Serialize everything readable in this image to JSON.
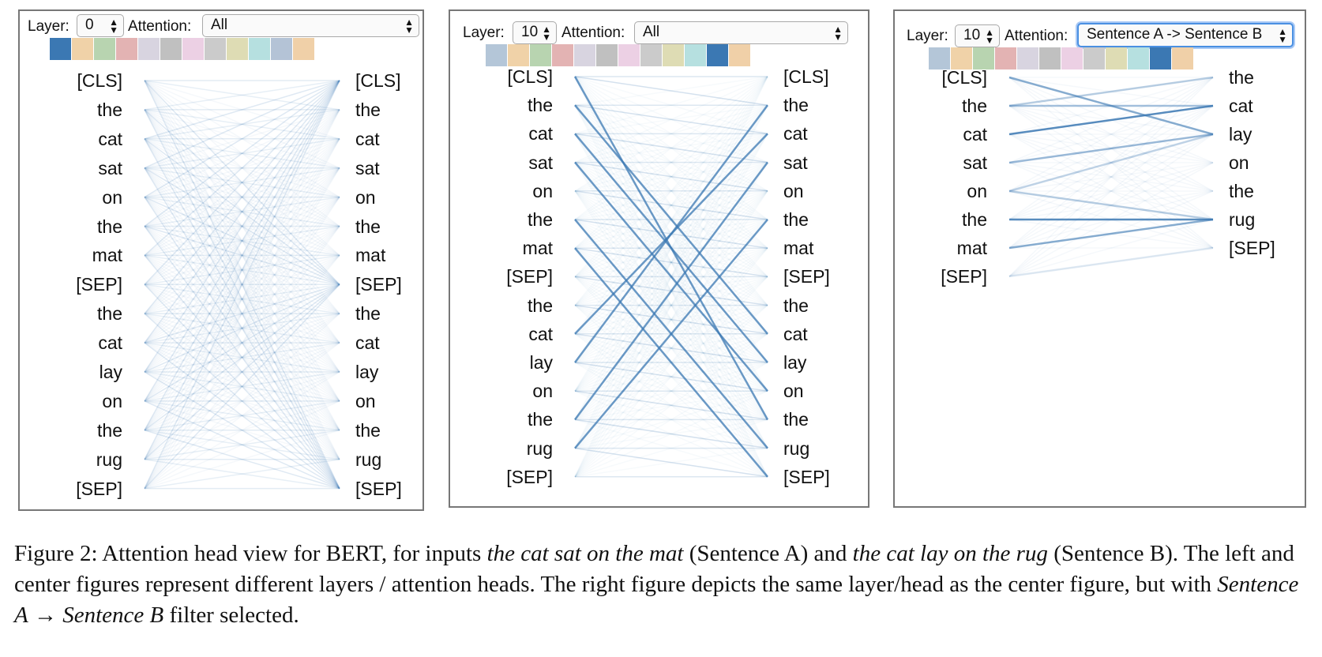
{
  "panels": [
    {
      "layer_label": "Layer:",
      "layer_value": "0",
      "attention_label": "Attention:",
      "attention_value": "All",
      "head_colors": [
        "#3b78b3",
        "#f0d2a8",
        "#b8d4b0",
        "#e3b3b3",
        "#d8d4e0",
        "#c0c0c0",
        "#ecd0e4",
        "#cbcbcb",
        "#dedcb4",
        "#b6e0e0",
        "#b4c3d6",
        "#f0d0a8"
      ],
      "selected_head": 0,
      "left_tokens": [
        "[CLS]",
        "the",
        "cat",
        "sat",
        "on",
        "the",
        "mat",
        "[SEP]",
        "the",
        "cat",
        "lay",
        "on",
        "the",
        "rug",
        "[SEP]"
      ],
      "right_tokens": [
        "[CLS]",
        "the",
        "cat",
        "sat",
        "on",
        "the",
        "mat",
        "[SEP]",
        "the",
        "cat",
        "lay",
        "on",
        "the",
        "rug",
        "[SEP]"
      ]
    },
    {
      "layer_label": "Layer:",
      "layer_value": "10",
      "attention_label": "Attention:",
      "attention_value": "All",
      "head_colors": [
        "#b4c6d8",
        "#f0d2a8",
        "#b8d4b0",
        "#e3b3b3",
        "#d8d4e0",
        "#c0c0c0",
        "#ecd0e4",
        "#cbcbcb",
        "#dedcb4",
        "#b6e0e0",
        "#3b78b3",
        "#f0d0a8"
      ],
      "selected_head": 10,
      "left_tokens": [
        "[CLS]",
        "the",
        "cat",
        "sat",
        "on",
        "the",
        "mat",
        "[SEP]",
        "the",
        "cat",
        "lay",
        "on",
        "the",
        "rug",
        "[SEP]"
      ],
      "right_tokens": [
        "[CLS]",
        "the",
        "cat",
        "sat",
        "on",
        "the",
        "mat",
        "[SEP]",
        "the",
        "cat",
        "lay",
        "on",
        "the",
        "rug",
        "[SEP]"
      ]
    },
    {
      "layer_label": "Layer:",
      "layer_value": "10",
      "attention_label": "Attention:",
      "attention_value": "Sentence A -> Sentence B",
      "head_colors": [
        "#b4c6d8",
        "#f0d2a8",
        "#b8d4b0",
        "#e3b3b3",
        "#d8d4e0",
        "#c0c0c0",
        "#ecd0e4",
        "#cbcbcb",
        "#dedcb4",
        "#b6e0e0",
        "#3b78b3",
        "#f0d0a8"
      ],
      "selected_head": 10,
      "left_tokens": [
        "[CLS]",
        "the",
        "cat",
        "sat",
        "on",
        "the",
        "mat",
        "[SEP]"
      ],
      "right_tokens": [
        "the",
        "cat",
        "lay",
        "on",
        "the",
        "rug",
        "[SEP]"
      ]
    }
  ],
  "caption": {
    "p1": "Figure 2: Attention head view for BERT, for inputs ",
    "e1": "the cat sat on the mat",
    "p2": " (Sentence A) and ",
    "e2": "the cat lay on the rug",
    "p3": " (Sentence B). The left and center figures represent different layers / attention heads. The right figure depicts the same layer/head as the center figure, but with ",
    "e3": "Sentence A",
    "arrow": " → ",
    "e4": "Sentence B",
    "p4": " filter selected."
  }
}
